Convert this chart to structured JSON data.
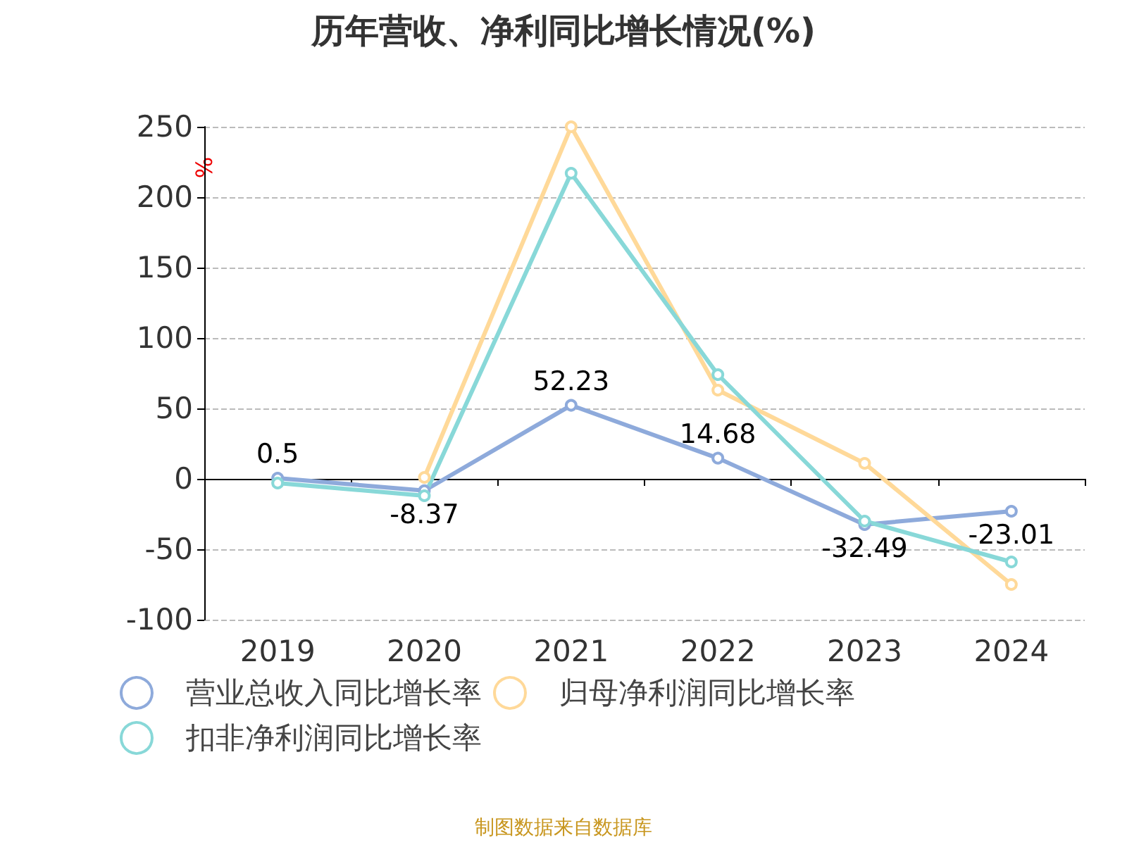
{
  "chart_data": {
    "type": "line",
    "title": "历年营收、净利同比增长情况(%)",
    "ylabel": "%",
    "categories": [
      "2019",
      "2020",
      "2021",
      "2022",
      "2023",
      "2024"
    ],
    "series": [
      {
        "name": "营业总收入同比增长率",
        "color": "#8eaadb",
        "values": [
          0.5,
          -8.37,
          52.23,
          14.68,
          -32.49,
          -23.01
        ],
        "value_labels": [
          "0.5",
          "-8.37",
          "52.23",
          "14.68",
          "-32.49",
          "-23.01"
        ]
      },
      {
        "name": "归母净利润同比增长率",
        "color": "#ffd999",
        "values": [
          null,
          1,
          250,
          63,
          11,
          -75
        ]
      },
      {
        "name": "扣非净利润同比增长率",
        "color": "#88d8d8",
        "values": [
          -3,
          -12,
          217,
          74,
          -30,
          -59
        ]
      }
    ],
    "ylim": [
      -100,
      250
    ],
    "yticks": [
      -100,
      -50,
      0,
      50,
      100,
      150,
      200,
      250
    ],
    "grid": "y",
    "legend": "bottom",
    "marker": "circle",
    "line_style": "solid",
    "annotations": [
      "制图数据来自数据库"
    ]
  }
}
